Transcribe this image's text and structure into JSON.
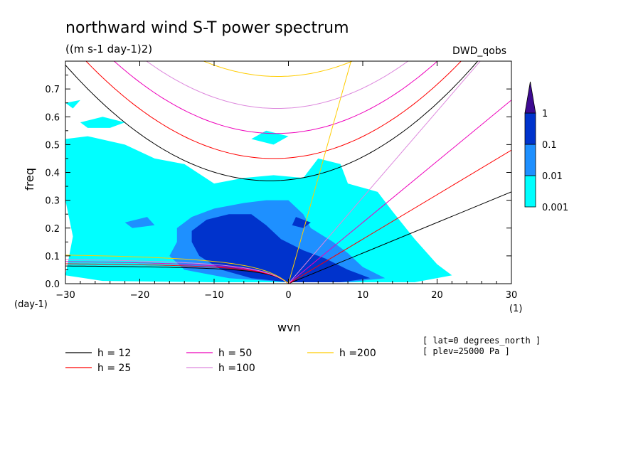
{
  "chart_data": {
    "type": "heatmap",
    "title": "northward wind S-T power spectrum",
    "subtitle": "((m s-1 day-1)2)",
    "dataset": "DWD_qobs",
    "xlabel": "wvn",
    "ylabel": "freq",
    "x_unit": "(1)",
    "y_unit": "(day-1)",
    "xlim": [
      -30,
      30
    ],
    "ylim": [
      0,
      0.8
    ],
    "x_ticks": [
      -30,
      -20,
      -10,
      0,
      10,
      20,
      30
    ],
    "y_ticks": [
      0.0,
      0.1,
      0.2,
      0.3,
      0.4,
      0.5,
      0.6,
      0.7
    ],
    "x_tick_labels": [
      "−30",
      "−20",
      "−10",
      "0",
      "10",
      "20",
      "30"
    ],
    "y_tick_labels": [
      "0.0",
      "0.1",
      "0.2",
      "0.3",
      "0.4",
      "0.5",
      "0.6",
      "0.7"
    ],
    "colorbar": {
      "levels": [
        "0.001",
        "0.01",
        "0.1",
        "1"
      ],
      "colors": [
        "#00ffff",
        "#1e90ff",
        "#0033cc",
        "#3d0a91"
      ]
    },
    "contour_regions": [
      {
        "level": "0.001",
        "color": "#00ffff",
        "points": [
          [
            -30,
            0.03
          ],
          [
            -29,
            0.17
          ],
          [
            -30,
            0.3
          ],
          [
            -30,
            0.52
          ],
          [
            -27,
            0.53
          ],
          [
            -22,
            0.5
          ],
          [
            -18,
            0.45
          ],
          [
            -14,
            0.43
          ],
          [
            -10,
            0.36
          ],
          [
            -6,
            0.38
          ],
          [
            -2,
            0.39
          ],
          [
            2,
            0.38
          ],
          [
            4,
            0.45
          ],
          [
            7,
            0.43
          ],
          [
            8,
            0.36
          ],
          [
            12,
            0.33
          ],
          [
            14,
            0.26
          ],
          [
            17,
            0.16
          ],
          [
            20,
            0.07
          ],
          [
            22,
            0.03
          ],
          [
            17,
            0.005
          ],
          [
            5,
            0.005
          ],
          [
            -10,
            0.005
          ],
          [
            -25,
            0.01
          ]
        ]
      },
      {
        "level": "0.001",
        "color": "#00ffff",
        "points": [
          [
            -28,
            0.58
          ],
          [
            -25,
            0.6
          ],
          [
            -22,
            0.58
          ],
          [
            -24,
            0.56
          ],
          [
            -27,
            0.56
          ]
        ]
      },
      {
        "level": "0.001",
        "color": "#00ffff",
        "points": [
          [
            -5,
            0.52
          ],
          [
            -3,
            0.55
          ],
          [
            0,
            0.53
          ],
          [
            -2,
            0.5
          ]
        ]
      },
      {
        "level": "0.001",
        "color": "#00ffff",
        "points": [
          [
            -30,
            0.65
          ],
          [
            -28,
            0.66
          ],
          [
            -29,
            0.63
          ]
        ]
      },
      {
        "level": "0.01",
        "color": "#1e90ff",
        "points": [
          [
            -15,
            0.2
          ],
          [
            -13,
            0.24
          ],
          [
            -10,
            0.27
          ],
          [
            -6,
            0.29
          ],
          [
            -3,
            0.3
          ],
          [
            0,
            0.3
          ],
          [
            2,
            0.25
          ],
          [
            3,
            0.2
          ],
          [
            6,
            0.15
          ],
          [
            8,
            0.11
          ],
          [
            10,
            0.06
          ],
          [
            13,
            0.02
          ],
          [
            8,
            0.005
          ],
          [
            0,
            0.005
          ],
          [
            -8,
            0.02
          ],
          [
            -14,
            0.05
          ],
          [
            -16,
            0.1
          ],
          [
            -15,
            0.15
          ]
        ]
      },
      {
        "level": "0.01",
        "color": "#1e90ff",
        "points": [
          [
            -22,
            0.22
          ],
          [
            -19,
            0.24
          ],
          [
            -18,
            0.21
          ],
          [
            -21,
            0.2
          ]
        ]
      },
      {
        "level": "0.1",
        "color": "#0033cc",
        "points": [
          [
            -13,
            0.19
          ],
          [
            -11,
            0.23
          ],
          [
            -8,
            0.25
          ],
          [
            -5,
            0.25
          ],
          [
            -3,
            0.21
          ],
          [
            -1,
            0.16
          ],
          [
            2,
            0.12
          ],
          [
            5,
            0.09
          ],
          [
            8,
            0.05
          ],
          [
            11,
            0.02
          ],
          [
            7,
            0.005
          ],
          [
            0,
            0.005
          ],
          [
            -5,
            0.02
          ],
          [
            -9,
            0.05
          ],
          [
            -12,
            0.1
          ],
          [
            -13,
            0.15
          ]
        ]
      },
      {
        "level": "0.1",
        "color": "#0033cc",
        "points": [
          [
            1,
            0.24
          ],
          [
            3,
            0.22
          ],
          [
            2,
            0.2
          ],
          [
            0.5,
            0.21
          ]
        ]
      }
    ],
    "series": [
      {
        "name": "h = 12",
        "color": "#000000"
      },
      {
        "name": "h = 25",
        "color": "#ff0000"
      },
      {
        "name": "h = 50",
        "color": "#ee00bb"
      },
      {
        "name": "h =100",
        "color": "#dd88dd"
      },
      {
        "name": "h =200",
        "color": "#ffcc00"
      }
    ],
    "curve_params": [
      {
        "h": 12,
        "freq_min": 0.37,
        "k_min": -2.5,
        "width": 0.00055,
        "yanai_slope": 0.011,
        "mrg_cap": 0.07
      },
      {
        "h": 25,
        "freq_min": 0.45,
        "k_min": -2.0,
        "width": 0.00055,
        "yanai_slope": 0.016,
        "mrg_cap": 0.08
      },
      {
        "h": 50,
        "freq_min": 0.54,
        "k_min": -1.7,
        "width": 0.00055,
        "yanai_slope": 0.022,
        "mrg_cap": 0.09
      },
      {
        "h": 100,
        "freq_min": 0.63,
        "k_min": -1.5,
        "width": 0.00055,
        "yanai_slope": 0.031,
        "mrg_cap": 0.1
      },
      {
        "h": 200,
        "freq_min": 0.745,
        "k_min": -1.4,
        "width": 0.00055,
        "yanai_slope": 0.095,
        "mrg_cap": 0.12
      }
    ],
    "annotations": [
      "[ lat=0 degrees_north ]",
      "[ plev=25000 Pa ]"
    ],
    "grid": false,
    "legend_placement": "bottom-left"
  }
}
